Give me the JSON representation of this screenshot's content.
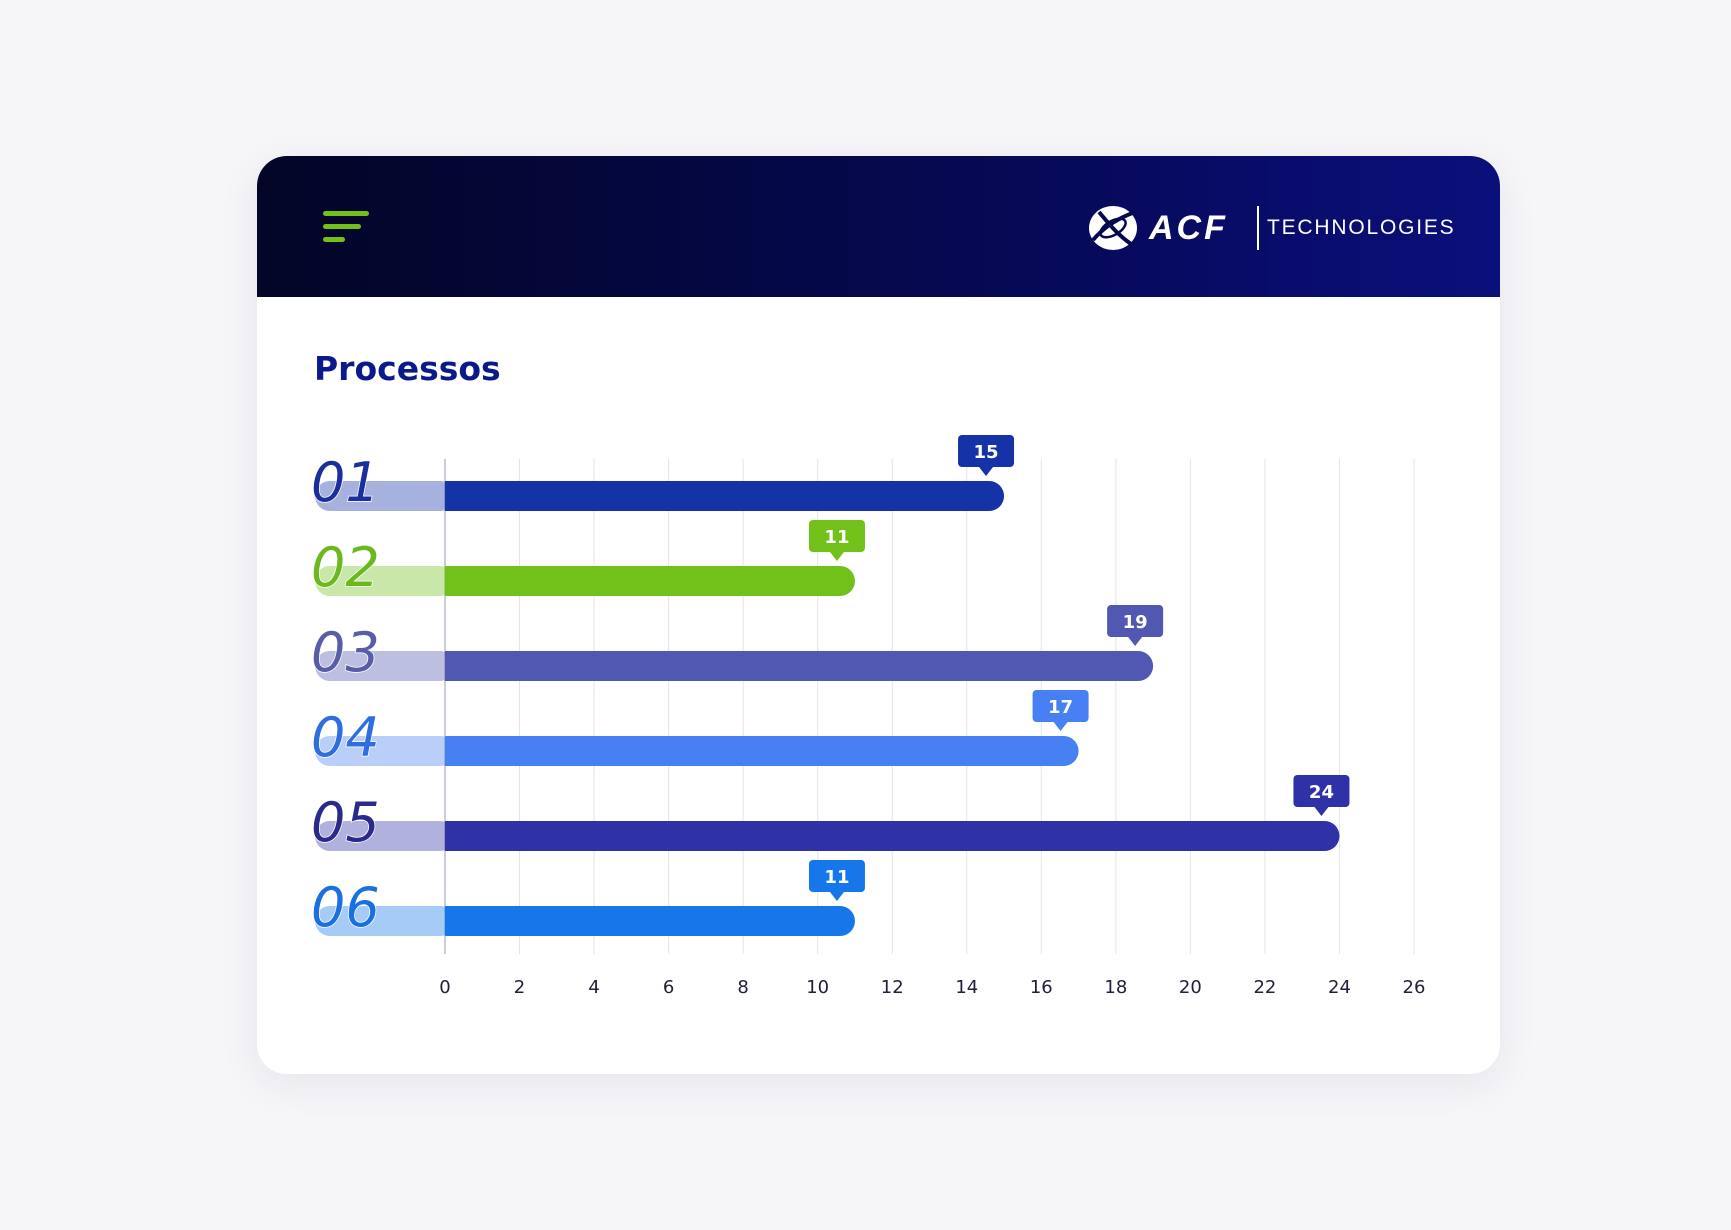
{
  "header": {
    "menu_icon": "hamburger-menu-icon",
    "logo": {
      "brand": "ACF",
      "tagline": "TECHNOLOGIES"
    }
  },
  "page": {
    "title": "Processos"
  },
  "colors": {
    "header_bg": "#050850",
    "accent_green": "#72c11b",
    "title": "#0b1a8a"
  },
  "chart_data": {
    "type": "bar",
    "orientation": "horizontal",
    "title": "Processos",
    "categories": [
      "01",
      "02",
      "03",
      "04",
      "05",
      "06"
    ],
    "values": [
      15,
      11,
      19,
      17,
      24,
      11
    ],
    "bar_colors": [
      "#1532a6",
      "#72c11b",
      "#5158b1",
      "#4680f2",
      "#2f31a6",
      "#1677eb"
    ],
    "label_colors": [
      "#1a2f9c",
      "#6cb81f",
      "#585da8",
      "#2f6ee0",
      "#2a2a8a",
      "#1a70e0"
    ],
    "x_ticks": [
      "0",
      "2",
      "4",
      "6",
      "8",
      "10",
      "12",
      "14",
      "16",
      "18",
      "20",
      "22",
      "24",
      "26"
    ],
    "xlim": [
      0,
      26
    ],
    "xlabel": "",
    "ylabel": "",
    "grid": "vertical",
    "data_labels": [
      "15",
      "11",
      "19",
      "17",
      "24",
      "11"
    ]
  }
}
